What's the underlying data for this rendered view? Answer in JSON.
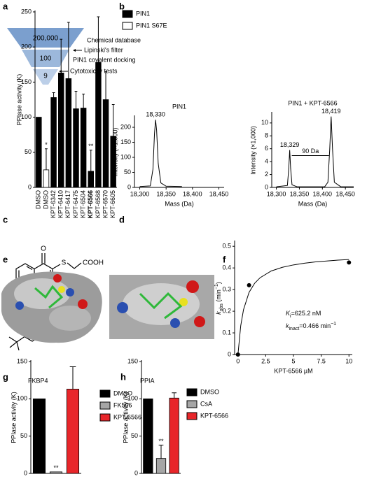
{
  "panel_labels": [
    "a",
    "b",
    "c",
    "d",
    "e",
    "f",
    "g",
    "h"
  ],
  "funnel": {
    "levels": [
      "200,000",
      "100",
      "9"
    ],
    "steps": [
      "Chemical database",
      "Lipinski's filter",
      "PIN1 covalent docking",
      "Cytotoxicity tests"
    ]
  },
  "structure": {
    "atoms": [
      "O",
      "S",
      "COOH",
      "N",
      "S",
      "O",
      "O"
    ]
  },
  "chart_data": [
    {
      "type": "bar",
      "y_label": "PPIase activity (K)",
      "categories": [
        "DMSO",
        "DMSO",
        "KPT-6342",
        "KPT-6410",
        "KPT-6417",
        "KPT-6475",
        "KPT-6504",
        "KPT-6566",
        "KPT-6568",
        "KPT-6570",
        "KPT-6605"
      ],
      "series": [
        {
          "name": "PIN1",
          "color": "#000000",
          "values": [
            100,
            null,
            128,
            163,
            155,
            112,
            113,
            23,
            178,
            125,
            73
          ],
          "errors": [
            null,
            null,
            7,
            48,
            80,
            25,
            20,
            30,
            65,
            40,
            45
          ]
        },
        {
          "name": "PIN1 S67E",
          "color": "#ffffff",
          "values": [
            null,
            25,
            null,
            null,
            null,
            null,
            null,
            null,
            null,
            null,
            null
          ],
          "errors": [
            null,
            30,
            null,
            null,
            null,
            null,
            null,
            null,
            null,
            null,
            null
          ]
        }
      ],
      "annotations": [
        "*",
        "**"
      ],
      "ylim": [
        0,
        250
      ],
      "yticks": [
        0,
        50,
        100,
        150,
        200,
        250
      ],
      "legend": "upper right"
    },
    {
      "type": "line",
      "title": "PIN1",
      "x_label": "Mass (Da)",
      "y_label": "Intensity (×1,000)",
      "x": [
        18300,
        18320,
        18325,
        18328,
        18330,
        18332,
        18335,
        18340,
        18350,
        18380
      ],
      "values": [
        3,
        5,
        60,
        180,
        225,
        190,
        80,
        15,
        4,
        3
      ],
      "color": "#000000",
      "annotations": [
        "18,330"
      ],
      "xlim": [
        18290,
        18460
      ],
      "xticks": [
        {
          "value": 18300,
          "label": "18,300"
        },
        {
          "value": 18350,
          "label": "18,350"
        },
        {
          "value": 18400,
          "label": "18,400"
        },
        {
          "value": 18450,
          "label": "18,450"
        }
      ],
      "ylim": [
        0,
        235
      ],
      "yticks": [
        0,
        50,
        100,
        150,
        200
      ]
    },
    {
      "type": "line",
      "title": "PIN1 + KPT-6566",
      "x_label": "Mass (Da)",
      "y_label": "Intensity (×1,000)",
      "x": [
        18300,
        18324,
        18327,
        18329,
        18331,
        18334,
        18345,
        18405,
        18412,
        18416,
        18419,
        18422,
        18426,
        18440,
        18468
      ],
      "values": [
        0.1,
        0.3,
        3,
        5.8,
        3,
        0.4,
        0.1,
        0.1,
        0.8,
        6,
        11,
        6,
        0.8,
        0.1,
        0.1
      ],
      "color": "#000000",
      "annotations": [
        "18,329",
        "18,419",
        "90 Da"
      ],
      "xlim": [
        18290,
        18468
      ],
      "xticks": [
        {
          "value": 18300,
          "label": "18,300"
        },
        {
          "value": 18350,
          "label": "18,350"
        },
        {
          "value": 18400,
          "label": "18,400"
        },
        {
          "value": 18450,
          "label": "18,450"
        }
      ],
      "ylim": [
        0,
        11.5
      ],
      "yticks": [
        0,
        2,
        4,
        6,
        8,
        10
      ]
    },
    {
      "type": "scatter",
      "x_label": "KPT-6566 µM",
      "y_label": [
        "k",
        "obs",
        " (min",
        "−1",
        ")"
      ],
      "x": [
        0,
        1,
        10
      ],
      "values": [
        0,
        0.32,
        0.425
      ],
      "color": "#000000",
      "fit": {
        "x": [
          0,
          0.25,
          0.5,
          1,
          1.5,
          2,
          3,
          4,
          5,
          6,
          7,
          8,
          9,
          10
        ],
        "values": [
          0,
          0.133,
          0.207,
          0.287,
          0.329,
          0.355,
          0.386,
          0.403,
          0.414,
          0.422,
          0.428,
          0.432,
          0.436,
          0.439
        ]
      },
      "annotations": [
        [
          "K",
          "i",
          "=625.2 nM"
        ],
        [
          "k",
          "inact",
          "=0.466 min",
          "−1"
        ]
      ],
      "xlim": [
        -0.3,
        10.3
      ],
      "xticks": [
        0,
        2.5,
        5,
        7.5,
        10
      ],
      "ylim": [
        0,
        0.52
      ],
      "yticks": [
        0,
        0.1,
        0.2,
        0.3,
        0.4,
        0.5
      ]
    },
    {
      "type": "bar",
      "title": "FKBP4",
      "y_label": "PPIase activity (K)",
      "categories": [
        "DMSO",
        "FK506",
        "KPT-6566"
      ],
      "colors": [
        "#000000",
        "#a6a6a6",
        "#e8262a"
      ],
      "values": [
        100,
        2,
        113
      ],
      "errors": [
        null,
        null,
        30
      ],
      "annotations": [
        "**"
      ],
      "ylim": [
        0,
        150
      ],
      "yticks": [
        0,
        50,
        100,
        150
      ],
      "legend": "right"
    },
    {
      "type": "bar",
      "title": "PPIA",
      "y_label": "PPIase activity (K)",
      "categories": [
        "DMSO",
        "CsA",
        "KPT-6566"
      ],
      "colors": [
        "#000000",
        "#a6a6a6",
        "#e8262a"
      ],
      "values": [
        100,
        20,
        101
      ],
      "errors": [
        null,
        18,
        7
      ],
      "annotations": [
        "**"
      ],
      "ylim": [
        0,
        150
      ],
      "yticks": [
        0,
        50,
        100,
        150
      ],
      "legend": "right"
    }
  ]
}
